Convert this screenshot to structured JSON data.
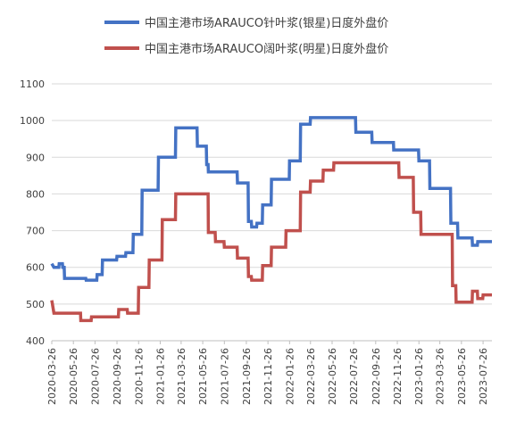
{
  "chart_data": {
    "type": "line",
    "title": "",
    "xlabel": "",
    "ylabel": "",
    "ylim": [
      400,
      1100
    ],
    "y_ticks": [
      400,
      500,
      600,
      700,
      800,
      900,
      1000,
      1100
    ],
    "x_range": [
      "2020-03-26",
      "2023-08-20"
    ],
    "x_tick_labels": [
      "2020-03-26",
      "2020-05-26",
      "2020-07-26",
      "2020-09-26",
      "2020-11-26",
      "2021-01-26",
      "2021-03-26",
      "2021-05-26",
      "2021-07-26",
      "2021-09-26",
      "2021-11-26",
      "2022-01-26",
      "2022-03-26",
      "2022-05-26",
      "2022-07-26",
      "2022-09-26",
      "2022-11-26",
      "2023-01-26",
      "2023-03-26",
      "2023-05-26",
      "2023-07-26"
    ],
    "grid": "horizontal",
    "legend_position": "top",
    "series": [
      {
        "name": "中国主港市场ARAUCO针叶浆(银星)日度外盘价",
        "color": "#4472c4",
        "points": [
          [
            "2020-03-26",
            610
          ],
          [
            "2020-04-01",
            600
          ],
          [
            "2020-04-15",
            600
          ],
          [
            "2020-04-16",
            610
          ],
          [
            "2020-04-25",
            610
          ],
          [
            "2020-04-26",
            600
          ],
          [
            "2020-04-30",
            600
          ],
          [
            "2020-05-01",
            570
          ],
          [
            "2020-06-30",
            570
          ],
          [
            "2020-07-01",
            565
          ],
          [
            "2020-07-31",
            565
          ],
          [
            "2020-08-01",
            580
          ],
          [
            "2020-08-15",
            580
          ],
          [
            "2020-08-16",
            620
          ],
          [
            "2020-09-25",
            620
          ],
          [
            "2020-09-26",
            630
          ],
          [
            "2020-10-20",
            630
          ],
          [
            "2020-10-21",
            640
          ],
          [
            "2020-11-10",
            640
          ],
          [
            "2020-11-11",
            690
          ],
          [
            "2020-12-05",
            690
          ],
          [
            "2020-12-06",
            810
          ],
          [
            "2021-01-20",
            810
          ],
          [
            "2021-01-21",
            900
          ],
          [
            "2021-03-10",
            900
          ],
          [
            "2021-03-11",
            980
          ],
          [
            "2021-05-10",
            980
          ],
          [
            "2021-05-11",
            930
          ],
          [
            "2021-06-05",
            930
          ],
          [
            "2021-06-06",
            880
          ],
          [
            "2021-06-10",
            880
          ],
          [
            "2021-06-11",
            860
          ],
          [
            "2021-08-31",
            860
          ],
          [
            "2021-09-01",
            830
          ],
          [
            "2021-10-01",
            830
          ],
          [
            "2021-10-02",
            725
          ],
          [
            "2021-10-10",
            725
          ],
          [
            "2021-10-11",
            710
          ],
          [
            "2021-10-25",
            710
          ],
          [
            "2021-10-26",
            720
          ],
          [
            "2021-11-10",
            720
          ],
          [
            "2021-11-11",
            770
          ],
          [
            "2021-12-05",
            770
          ],
          [
            "2021-12-06",
            840
          ],
          [
            "2022-01-25",
            840
          ],
          [
            "2022-01-26",
            890
          ],
          [
            "2022-02-25",
            890
          ],
          [
            "2022-02-26",
            990
          ],
          [
            "2022-03-25",
            990
          ],
          [
            "2022-03-26",
            1008
          ],
          [
            "2022-07-31",
            1008
          ],
          [
            "2022-08-01",
            968
          ],
          [
            "2022-09-15",
            968
          ],
          [
            "2022-09-16",
            940
          ],
          [
            "2022-11-15",
            940
          ],
          [
            "2022-11-16",
            920
          ],
          [
            "2023-01-25",
            920
          ],
          [
            "2023-01-26",
            890
          ],
          [
            "2023-02-25",
            890
          ],
          [
            "2023-02-26",
            815
          ],
          [
            "2023-04-25",
            815
          ],
          [
            "2023-04-26",
            720
          ],
          [
            "2023-05-15",
            720
          ],
          [
            "2023-05-16",
            680
          ],
          [
            "2023-06-25",
            680
          ],
          [
            "2023-06-26",
            660
          ],
          [
            "2023-07-10",
            660
          ],
          [
            "2023-07-11",
            670
          ],
          [
            "2023-08-20",
            670
          ]
        ]
      },
      {
        "name": "中国主港市场ARAUCO阔叶浆(明星)日度外盘价",
        "color": "#c0504d",
        "points": [
          [
            "2020-03-26",
            510
          ],
          [
            "2020-04-01",
            475
          ],
          [
            "2020-06-15",
            475
          ],
          [
            "2020-06-16",
            455
          ],
          [
            "2020-07-15",
            455
          ],
          [
            "2020-07-16",
            465
          ],
          [
            "2020-09-30",
            465
          ],
          [
            "2020-10-01",
            485
          ],
          [
            "2020-10-25",
            485
          ],
          [
            "2020-10-26",
            475
          ],
          [
            "2020-11-25",
            475
          ],
          [
            "2020-11-26",
            545
          ],
          [
            "2020-12-25",
            545
          ],
          [
            "2020-12-26",
            620
          ],
          [
            "2021-01-31",
            620
          ],
          [
            "2021-02-01",
            730
          ],
          [
            "2021-03-10",
            730
          ],
          [
            "2021-03-11",
            800
          ],
          [
            "2021-06-10",
            800
          ],
          [
            "2021-06-11",
            695
          ],
          [
            "2021-06-30",
            695
          ],
          [
            "2021-07-01",
            670
          ],
          [
            "2021-07-25",
            670
          ],
          [
            "2021-07-26",
            655
          ],
          [
            "2021-08-31",
            655
          ],
          [
            "2021-09-01",
            625
          ],
          [
            "2021-10-01",
            625
          ],
          [
            "2021-10-02",
            575
          ],
          [
            "2021-10-10",
            575
          ],
          [
            "2021-10-11",
            565
          ],
          [
            "2021-11-10",
            565
          ],
          [
            "2021-11-11",
            605
          ],
          [
            "2021-12-05",
            605
          ],
          [
            "2021-12-06",
            655
          ],
          [
            "2022-01-15",
            655
          ],
          [
            "2022-01-16",
            700
          ],
          [
            "2022-02-25",
            700
          ],
          [
            "2022-02-26",
            805
          ],
          [
            "2022-03-25",
            805
          ],
          [
            "2022-03-26",
            835
          ],
          [
            "2022-04-30",
            835
          ],
          [
            "2022-05-01",
            865
          ],
          [
            "2022-05-30",
            865
          ],
          [
            "2022-05-31",
            885
          ],
          [
            "2022-11-30",
            885
          ],
          [
            "2022-12-01",
            845
          ],
          [
            "2023-01-10",
            845
          ],
          [
            "2023-01-11",
            750
          ],
          [
            "2023-01-31",
            750
          ],
          [
            "2023-02-01",
            690
          ],
          [
            "2023-04-30",
            690
          ],
          [
            "2023-05-01",
            550
          ],
          [
            "2023-05-10",
            550
          ],
          [
            "2023-05-11",
            505
          ],
          [
            "2023-06-25",
            505
          ],
          [
            "2023-06-26",
            535
          ],
          [
            "2023-07-10",
            535
          ],
          [
            "2023-07-11",
            515
          ],
          [
            "2023-07-25",
            515
          ],
          [
            "2023-07-26",
            525
          ],
          [
            "2023-08-20",
            525
          ]
        ]
      }
    ]
  }
}
